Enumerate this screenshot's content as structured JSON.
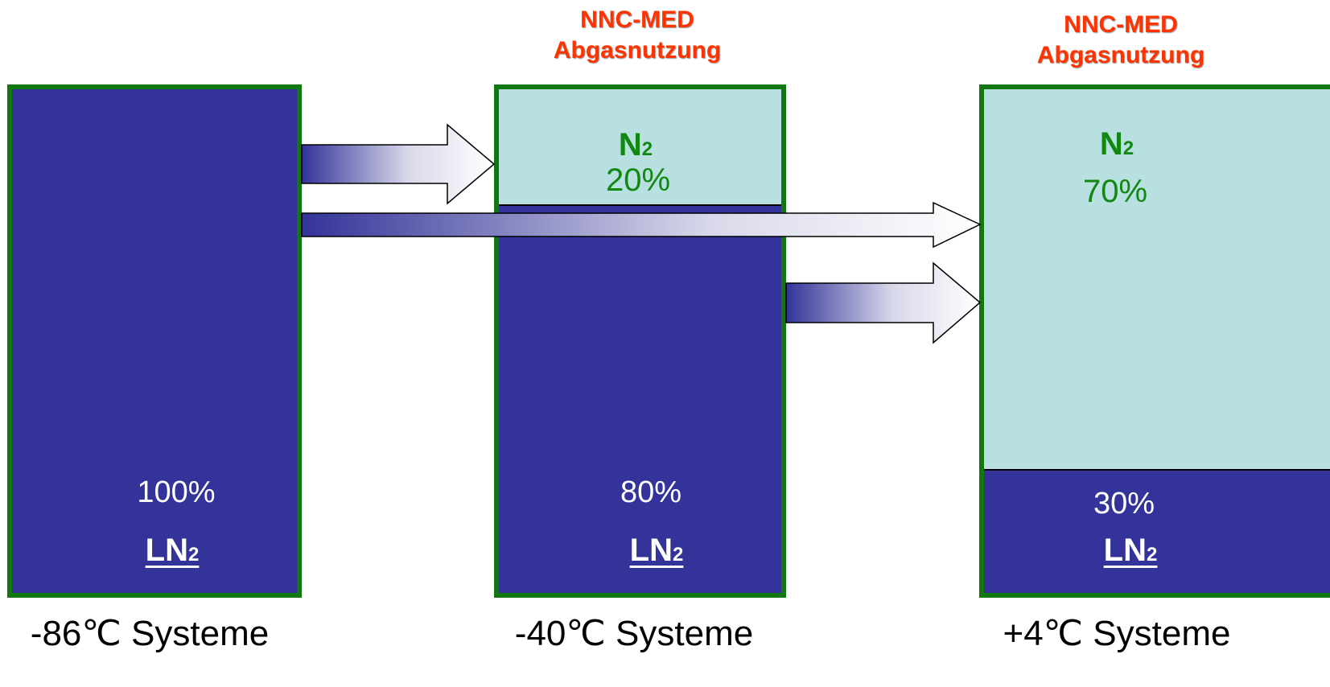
{
  "colors": {
    "liquid": "#333399",
    "gas": "#b8e0e0",
    "border": "#117711",
    "header": "#ff3300",
    "n2_text": "#118811"
  },
  "columns": [
    {
      "header": null,
      "ln_percent": "100%",
      "ln_label": "LN",
      "ln_sub": "2",
      "system": "-86℃ Systeme",
      "gas_fraction": 0.0
    },
    {
      "header": {
        "line1": "NNC-MED",
        "line2": "Abgasnutzung"
      },
      "n2_label": "N",
      "n2_sub": "2",
      "n2_percent": "20%",
      "ln_percent": "80%",
      "ln_label": "LN",
      "ln_sub": "2",
      "system": "-40℃ Systeme",
      "gas_fraction": 0.2
    },
    {
      "header": {
        "line1": "NNC-MED",
        "line2": "Abgasnutzung"
      },
      "n2_label": "N",
      "n2_sub": "2",
      "n2_percent": "70%",
      "ln_percent": "30%",
      "ln_label": "LN",
      "ln_sub": "2",
      "system": "+4℃ Systeme",
      "gas_fraction": 0.7
    }
  ]
}
